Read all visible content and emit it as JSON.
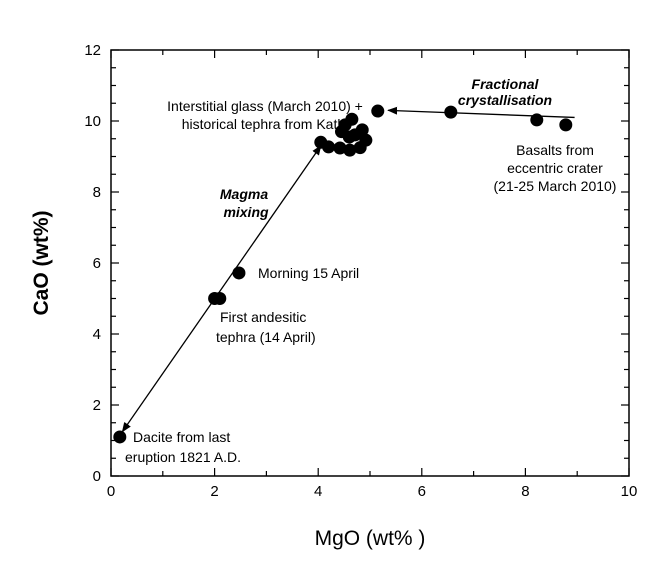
{
  "chart_data": {
    "type": "scatter",
    "xlabel": "MgO (wt% )",
    "ylabel": "CaO (wt%)",
    "xlim": [
      0,
      10
    ],
    "ylim": [
      0,
      12
    ],
    "xticks": [
      "0",
      "2",
      "4",
      "6",
      "8",
      "10"
    ],
    "yticks": [
      "0",
      "2",
      "4",
      "6",
      "8",
      "10",
      "12"
    ],
    "grid": false,
    "marker_color": "#000000",
    "points": [
      {
        "x": 0.17,
        "y": 1.1
      },
      {
        "x": 2.0,
        "y": 5.0
      },
      {
        "x": 2.1,
        "y": 5.0
      },
      {
        "x": 2.47,
        "y": 5.72
      },
      {
        "x": 4.05,
        "y": 9.4
      },
      {
        "x": 4.2,
        "y": 9.27
      },
      {
        "x": 4.42,
        "y": 9.24
      },
      {
        "x": 4.45,
        "y": 9.7
      },
      {
        "x": 4.52,
        "y": 9.89
      },
      {
        "x": 4.61,
        "y": 9.18
      },
      {
        "x": 4.65,
        "y": 10.05
      },
      {
        "x": 4.71,
        "y": 9.61
      },
      {
        "x": 4.81,
        "y": 9.25
      },
      {
        "x": 4.85,
        "y": 9.75
      },
      {
        "x": 4.92,
        "y": 9.46
      },
      {
        "x": 4.6,
        "y": 9.55
      },
      {
        "x": 5.15,
        "y": 10.28
      },
      {
        "x": 6.56,
        "y": 10.25
      },
      {
        "x": 8.22,
        "y": 10.03
      },
      {
        "x": 8.78,
        "y": 9.89
      }
    ],
    "arrows": [
      {
        "from": [
          4.05,
          9.3
        ],
        "to": [
          0.22,
          1.25
        ],
        "both_ends": true
      },
      {
        "from": [
          8.95,
          10.1
        ],
        "to": [
          5.35,
          10.3
        ],
        "both_ends": false
      }
    ],
    "annotations": {
      "glass_1": "Interstitial glass (March 2010) +",
      "glass_2": "historical tephra from Katla",
      "fc_1": "Fractional",
      "fc_2": "crystallisation",
      "basalt_1": "Basalts from",
      "basalt_2": "eccentric crater",
      "basalt_3": "(21-25 March 2010)",
      "mix_1": "Magma",
      "mix_2": "mixing",
      "morning": "Morning 15 April",
      "andesite_1": "First  andesitic",
      "andesite_2": "tephra (14 April)",
      "dacite_1": "Dacite from last",
      "dacite_2": "eruption 1821 A.D."
    }
  }
}
